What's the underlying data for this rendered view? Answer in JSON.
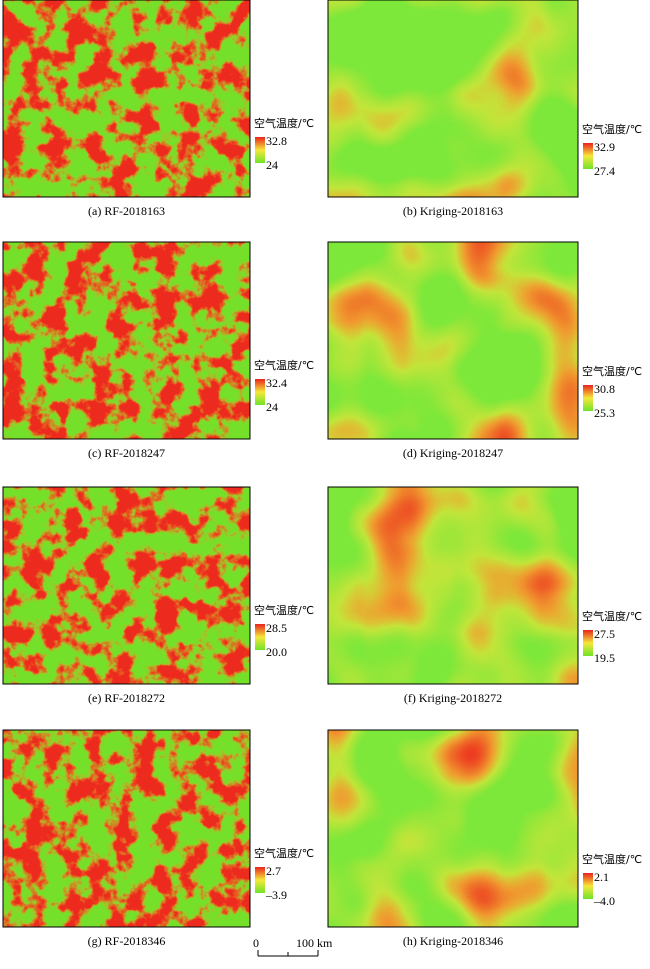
{
  "panels": [
    {
      "caption": "(a) RF-2018163",
      "legend_title": "空气温度/℃",
      "max": "32.8",
      "min": "24"
    },
    {
      "caption": "(b) Kriging-2018163",
      "legend_title": "空气温度/℃",
      "max": "32.9",
      "min": "27.4"
    },
    {
      "caption": "(c) RF-2018247",
      "legend_title": "空气温度/℃",
      "max": "32.4",
      "min": "24"
    },
    {
      "caption": "(d) Kriging-2018247",
      "legend_title": "空气温度/℃",
      "max": "30.8",
      "min": "25.3"
    },
    {
      "caption": "(e) RF-2018272",
      "legend_title": "空气温度/℃",
      "max": "28.5",
      "min": "20.0"
    },
    {
      "caption": "(f) Kriging-2018272",
      "legend_title": "空气温度/℃",
      "max": "27.5",
      "min": "19.5"
    },
    {
      "caption": "(g) RF-2018346",
      "legend_title": "空气温度/℃",
      "max": "2.7",
      "min": "–3.9"
    },
    {
      "caption": "(h) Kriging-2018346",
      "legend_title": "空气温度/℃",
      "max": "2.1",
      "min": "–4.0"
    }
  ],
  "scale_bar": {
    "start": "0",
    "end": "100 km"
  }
}
